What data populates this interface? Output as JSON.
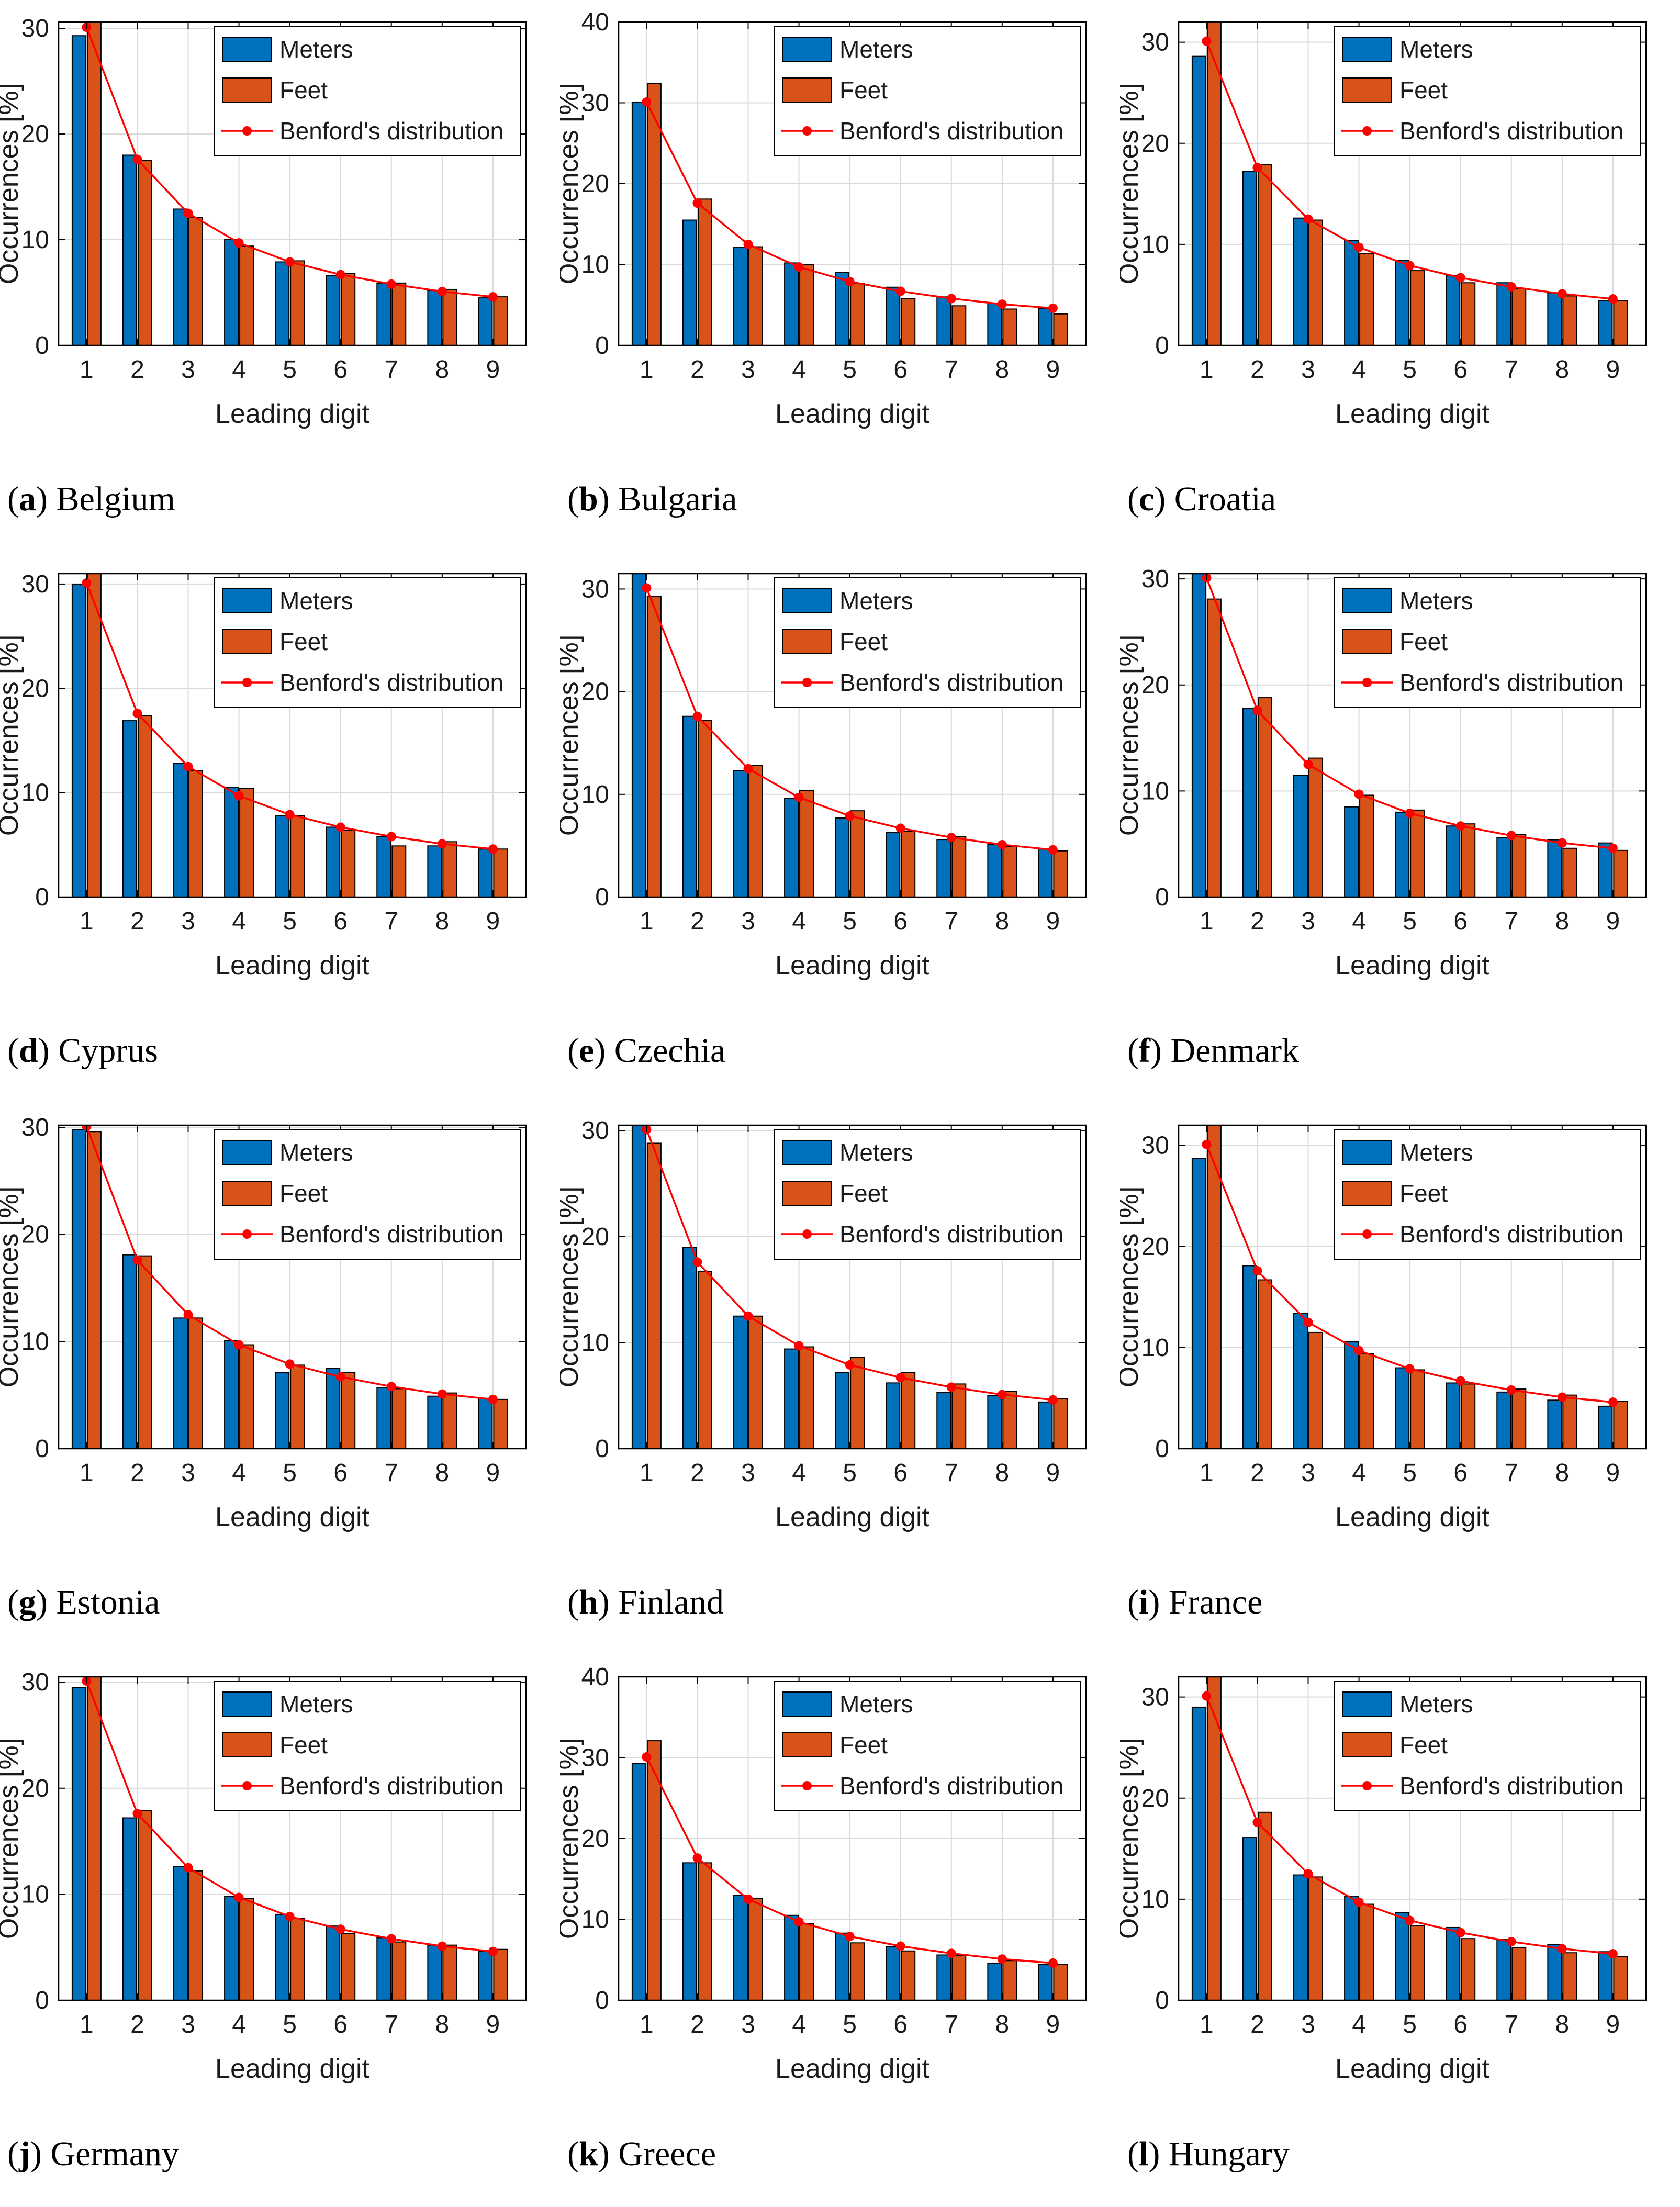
{
  "figure": {
    "description": "Leading-digit occurrence distributions (Benford analysis) for elevation data in meters and feet across 12 countries",
    "grid": {
      "columns": 3,
      "rows": 4
    }
  },
  "colors": {
    "meters": "#0072BD",
    "feet": "#D95319",
    "benford_line": "#FF0000",
    "bar_edge": "#000000",
    "grid_line": "#d9d9d9",
    "axis_line": "#000000",
    "tick_text": "#1a1a1a",
    "background": "#ffffff"
  },
  "legend": {
    "items": [
      {
        "swatch": "meters-patch",
        "label": "Meters"
      },
      {
        "swatch": "feet-patch",
        "label": "Feet"
      },
      {
        "swatch": "benford-line-marker",
        "label": "Benford's distribution"
      }
    ],
    "position": "top-right"
  },
  "axes": {
    "xlabel": "Leading digit",
    "ylabel": "Occurrences [%]",
    "categories": [
      1,
      2,
      3,
      4,
      5,
      6,
      7,
      8,
      9
    ],
    "grid": true
  },
  "benford_values": [
    30.1,
    17.6,
    12.5,
    9.7,
    7.9,
    6.7,
    5.8,
    5.1,
    4.6
  ],
  "chart_data": [
    {
      "type": "bar",
      "letter": "a",
      "country": "Belgium",
      "xlabel": "Leading digit",
      "ylabel": "Occurrences [%]",
      "categories": [
        1,
        2,
        3,
        4,
        5,
        6,
        7,
        8,
        9
      ],
      "ylim": [
        0,
        30.6
      ],
      "yticks": [
        0,
        10,
        20,
        30
      ],
      "series": [
        {
          "name": "Meters",
          "values": [
            29.3,
            18.0,
            12.9,
            10.0,
            7.9,
            6.6,
            5.9,
            5.2,
            4.5
          ]
        },
        {
          "name": "Feet",
          "values": [
            30.7,
            17.5,
            12.1,
            9.4,
            8.0,
            6.8,
            5.9,
            5.3,
            4.6
          ]
        },
        {
          "name": "Benford's distribution",
          "values": [
            30.1,
            17.6,
            12.5,
            9.7,
            7.9,
            6.7,
            5.8,
            5.1,
            4.6
          ]
        }
      ]
    },
    {
      "type": "bar",
      "letter": "b",
      "country": "Bulgaria",
      "xlabel": "Leading digit",
      "ylabel": "Occurrences [%]",
      "categories": [
        1,
        2,
        3,
        4,
        5,
        6,
        7,
        8,
        9
      ],
      "ylim": [
        0,
        40
      ],
      "yticks": [
        0,
        10,
        20,
        30,
        40
      ],
      "series": [
        {
          "name": "Meters",
          "values": [
            30.1,
            15.5,
            12.1,
            10.2,
            9.0,
            7.2,
            6.0,
            5.2,
            4.6
          ]
        },
        {
          "name": "Feet",
          "values": [
            32.4,
            18.1,
            12.2,
            10.0,
            7.7,
            5.8,
            4.9,
            4.5,
            3.9
          ]
        },
        {
          "name": "Benford's distribution",
          "values": [
            30.1,
            17.6,
            12.5,
            9.7,
            7.9,
            6.7,
            5.8,
            5.1,
            4.6
          ]
        }
      ]
    },
    {
      "type": "bar",
      "letter": "c",
      "country": "Croatia",
      "xlabel": "Leading digit",
      "ylabel": "Occurrences [%]",
      "categories": [
        1,
        2,
        3,
        4,
        5,
        6,
        7,
        8,
        9
      ],
      "ylim": [
        0,
        32
      ],
      "yticks": [
        0,
        10,
        20,
        30
      ],
      "series": [
        {
          "name": "Meters",
          "values": [
            28.6,
            17.2,
            12.6,
            10.4,
            8.4,
            6.9,
            6.2,
            5.2,
            4.4
          ]
        },
        {
          "name": "Feet",
          "values": [
            33.0,
            17.9,
            12.4,
            9.1,
            7.4,
            6.2,
            5.6,
            4.9,
            4.4
          ]
        },
        {
          "name": "Benford's distribution",
          "values": [
            30.1,
            17.6,
            12.5,
            9.7,
            7.9,
            6.7,
            5.8,
            5.1,
            4.6
          ]
        }
      ]
    },
    {
      "type": "bar",
      "letter": "d",
      "country": "Cyprus",
      "xlabel": "Leading digit",
      "ylabel": "Occurrences [%]",
      "categories": [
        1,
        2,
        3,
        4,
        5,
        6,
        7,
        8,
        9
      ],
      "ylim": [
        0,
        31
      ],
      "yticks": [
        0,
        10,
        20,
        30
      ],
      "series": [
        {
          "name": "Meters",
          "values": [
            30.0,
            16.9,
            12.8,
            10.5,
            7.8,
            6.7,
            5.8,
            4.9,
            4.6
          ]
        },
        {
          "name": "Feet",
          "values": [
            31.5,
            17.4,
            12.1,
            10.4,
            7.8,
            6.4,
            4.9,
            5.3,
            4.6
          ]
        },
        {
          "name": "Benford's distribution",
          "values": [
            30.1,
            17.6,
            12.5,
            9.7,
            7.9,
            6.7,
            5.8,
            5.1,
            4.6
          ]
        }
      ]
    },
    {
      "type": "bar",
      "letter": "e",
      "country": "Czechia",
      "xlabel": "Leading digit",
      "ylabel": "Occurrences [%]",
      "categories": [
        1,
        2,
        3,
        4,
        5,
        6,
        7,
        8,
        9
      ],
      "ylim": [
        0,
        31.5
      ],
      "yticks": [
        0,
        10,
        20,
        30
      ],
      "series": [
        {
          "name": "Meters",
          "values": [
            31.8,
            17.6,
            12.3,
            9.6,
            7.7,
            6.3,
            5.6,
            5.1,
            4.7
          ]
        },
        {
          "name": "Feet",
          "values": [
            29.3,
            17.2,
            12.8,
            10.4,
            8.4,
            6.4,
            5.9,
            4.9,
            4.5
          ]
        },
        {
          "name": "Benford's distribution",
          "values": [
            30.1,
            17.6,
            12.5,
            9.7,
            7.9,
            6.7,
            5.8,
            5.1,
            4.6
          ]
        }
      ]
    },
    {
      "type": "bar",
      "letter": "f",
      "country": "Denmark",
      "xlabel": "Leading digit",
      "ylabel": "Occurrences [%]",
      "categories": [
        1,
        2,
        3,
        4,
        5,
        6,
        7,
        8,
        9
      ],
      "ylim": [
        0,
        30.5
      ],
      "yticks": [
        0,
        10,
        20,
        30
      ],
      "series": [
        {
          "name": "Meters",
          "values": [
            31.0,
            17.8,
            11.5,
            8.5,
            8.0,
            6.7,
            5.6,
            5.4,
            5.1
          ]
        },
        {
          "name": "Feet",
          "values": [
            28.1,
            18.8,
            13.1,
            9.6,
            8.2,
            6.9,
            5.9,
            4.6,
            4.4
          ]
        },
        {
          "name": "Benford's distribution",
          "values": [
            30.1,
            17.6,
            12.5,
            9.7,
            7.9,
            6.7,
            5.8,
            5.1,
            4.6
          ]
        }
      ]
    },
    {
      "type": "bar",
      "letter": "g",
      "country": "Estonia",
      "xlabel": "Leading digit",
      "ylabel": "Occurrences [%]",
      "categories": [
        1,
        2,
        3,
        4,
        5,
        6,
        7,
        8,
        9
      ],
      "ylim": [
        0,
        30.2
      ],
      "yticks": [
        0,
        10,
        20,
        30
      ],
      "series": [
        {
          "name": "Meters",
          "values": [
            29.8,
            18.1,
            12.2,
            10.1,
            7.1,
            7.5,
            5.7,
            4.9,
            4.7
          ]
        },
        {
          "name": "Feet",
          "values": [
            29.6,
            18.0,
            12.2,
            9.7,
            7.8,
            7.1,
            5.6,
            5.2,
            4.6
          ]
        },
        {
          "name": "Benford's distribution",
          "values": [
            30.1,
            17.6,
            12.5,
            9.7,
            7.9,
            6.7,
            5.8,
            5.1,
            4.6
          ]
        }
      ]
    },
    {
      "type": "bar",
      "letter": "h",
      "country": "Finland",
      "xlabel": "Leading digit",
      "ylabel": "Occurrences [%]",
      "categories": [
        1,
        2,
        3,
        4,
        5,
        6,
        7,
        8,
        9
      ],
      "ylim": [
        0,
        30.5
      ],
      "yticks": [
        0,
        10,
        20,
        30
      ],
      "series": [
        {
          "name": "Meters",
          "values": [
            31.0,
            19.0,
            12.5,
            9.4,
            7.2,
            6.2,
            5.3,
            5.0,
            4.4
          ]
        },
        {
          "name": "Feet",
          "values": [
            28.8,
            16.7,
            12.5,
            9.6,
            8.6,
            7.2,
            6.1,
            5.4,
            4.7
          ]
        },
        {
          "name": "Benford's distribution",
          "values": [
            30.1,
            17.6,
            12.5,
            9.7,
            7.9,
            6.7,
            5.8,
            5.1,
            4.6
          ]
        }
      ]
    },
    {
      "type": "bar",
      "letter": "i",
      "country": "France",
      "xlabel": "Leading digit",
      "ylabel": "Occurrences [%]",
      "categories": [
        1,
        2,
        3,
        4,
        5,
        6,
        7,
        8,
        9
      ],
      "ylim": [
        0,
        32
      ],
      "yticks": [
        0,
        10,
        20,
        30
      ],
      "series": [
        {
          "name": "Meters",
          "values": [
            28.7,
            18.1,
            13.4,
            10.6,
            8.0,
            6.5,
            5.6,
            4.8,
            4.2
          ]
        },
        {
          "name": "Feet",
          "values": [
            33.5,
            16.7,
            11.5,
            9.4,
            7.8,
            6.4,
            5.9,
            5.3,
            4.7
          ]
        },
        {
          "name": "Benford's distribution",
          "values": [
            30.1,
            17.6,
            12.5,
            9.7,
            7.9,
            6.7,
            5.8,
            5.1,
            4.6
          ]
        }
      ]
    },
    {
      "type": "bar",
      "letter": "j",
      "country": "Germany",
      "xlabel": "Leading digit",
      "ylabel": "Occurrences [%]",
      "categories": [
        1,
        2,
        3,
        4,
        5,
        6,
        7,
        8,
        9
      ],
      "ylim": [
        0,
        30.5
      ],
      "yticks": [
        0,
        10,
        20,
        30
      ],
      "series": [
        {
          "name": "Meters",
          "values": [
            29.5,
            17.2,
            12.6,
            9.8,
            8.1,
            7.0,
            5.9,
            5.2,
            4.6
          ]
        },
        {
          "name": "Feet",
          "values": [
            31.0,
            17.9,
            12.2,
            9.6,
            7.7,
            6.3,
            5.5,
            5.2,
            4.8
          ]
        },
        {
          "name": "Benford's distribution",
          "values": [
            30.1,
            17.6,
            12.5,
            9.7,
            7.9,
            6.7,
            5.8,
            5.1,
            4.6
          ]
        }
      ]
    },
    {
      "type": "bar",
      "letter": "k",
      "country": "Greece",
      "xlabel": "Leading digit",
      "ylabel": "Occurrences [%]",
      "categories": [
        1,
        2,
        3,
        4,
        5,
        6,
        7,
        8,
        9
      ],
      "ylim": [
        0,
        40
      ],
      "yticks": [
        0,
        10,
        20,
        30,
        40
      ],
      "series": [
        {
          "name": "Meters",
          "values": [
            29.3,
            17.0,
            13.0,
            10.5,
            8.3,
            6.6,
            5.6,
            4.6,
            4.4
          ]
        },
        {
          "name": "Feet",
          "values": [
            32.1,
            17.0,
            12.6,
            9.5,
            7.1,
            6.1,
            5.5,
            4.9,
            4.4
          ]
        },
        {
          "name": "Benford's distribution",
          "values": [
            30.1,
            17.6,
            12.5,
            9.7,
            7.9,
            6.7,
            5.8,
            5.1,
            4.6
          ]
        }
      ]
    },
    {
      "type": "bar",
      "letter": "l",
      "country": "Hungary",
      "xlabel": "Leading digit",
      "ylabel": "Occurrences [%]",
      "categories": [
        1,
        2,
        3,
        4,
        5,
        6,
        7,
        8,
        9
      ],
      "ylim": [
        0,
        32
      ],
      "yticks": [
        0,
        10,
        20,
        30
      ],
      "series": [
        {
          "name": "Meters",
          "values": [
            29.0,
            16.1,
            12.4,
            10.3,
            8.7,
            7.2,
            6.0,
            5.5,
            4.8
          ]
        },
        {
          "name": "Feet",
          "values": [
            33.0,
            18.6,
            12.2,
            9.5,
            7.4,
            6.1,
            5.2,
            4.7,
            4.3
          ]
        },
        {
          "name": "Benford's distribution",
          "values": [
            30.1,
            17.6,
            12.5,
            9.7,
            7.9,
            6.7,
            5.8,
            5.1,
            4.6
          ]
        }
      ]
    }
  ]
}
